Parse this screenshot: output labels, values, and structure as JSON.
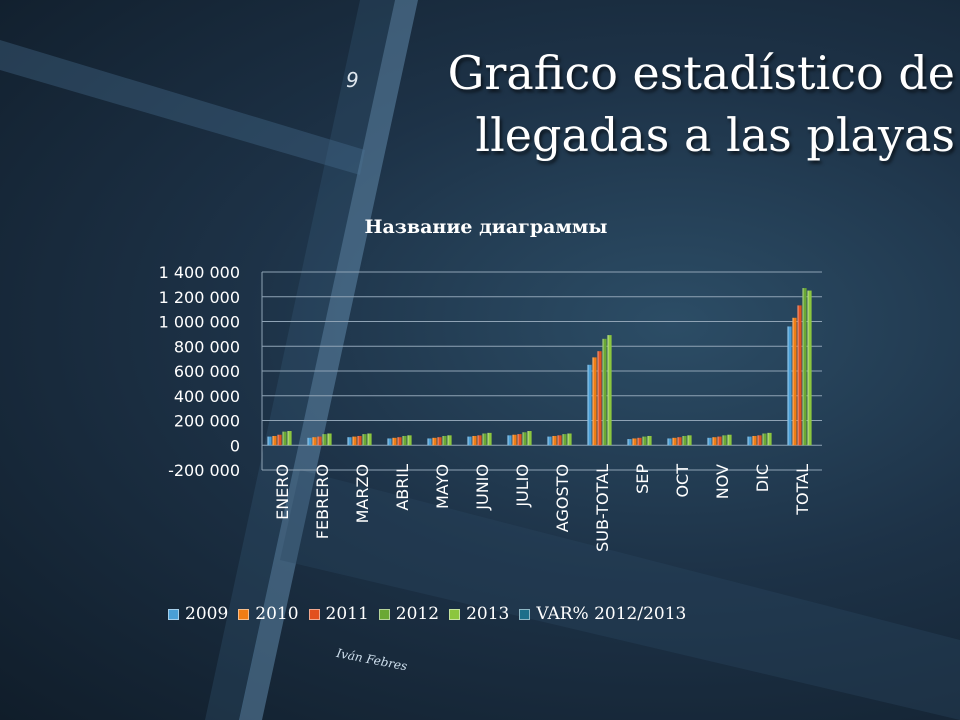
{
  "slide": {
    "number": "9",
    "title_line1": "Grafico estadístico de",
    "title_line2": "llegadas a las playas",
    "author": "Iván Febres"
  },
  "chart_data": {
    "type": "bar",
    "title": "Название диаграммы",
    "categories": [
      "ENERO",
      "FEBRERO",
      "MARZO",
      "ABRIL",
      "MAYO",
      "JUNIO",
      "JULIO",
      "AGOSTO",
      "SUB-TOTAL",
      "SEP",
      "OCT",
      "NOV",
      "DIC",
      "TOTAL"
    ],
    "ylim": [
      -200000,
      1400000
    ],
    "yticks": [
      -200000,
      0,
      200000,
      400000,
      600000,
      800000,
      1000000,
      1200000,
      1400000
    ],
    "ytick_labels": [
      "-200 000",
      "0",
      "200 000",
      "400 000",
      "600 000",
      "800 000",
      "1 000 000",
      "1 200 000",
      "1 400 000"
    ],
    "grid": true,
    "legend_position": "bottom",
    "series": [
      {
        "name": "2009",
        "color": "#4a9fd6",
        "values": [
          70000,
          60000,
          65000,
          55000,
          55000,
          70000,
          80000,
          70000,
          650000,
          50000,
          55000,
          60000,
          70000,
          960000
        ]
      },
      {
        "name": "2010",
        "color": "#f07d14",
        "values": [
          75000,
          65000,
          70000,
          60000,
          60000,
          75000,
          85000,
          75000,
          710000,
          55000,
          60000,
          65000,
          75000,
          1030000
        ]
      },
      {
        "name": "2011",
        "color": "#e2501e",
        "values": [
          85000,
          70000,
          75000,
          65000,
          65000,
          80000,
          90000,
          80000,
          760000,
          60000,
          65000,
          70000,
          80000,
          1130000
        ]
      },
      {
        "name": "2012",
        "color": "#6aa834",
        "values": [
          110000,
          90000,
          90000,
          75000,
          75000,
          95000,
          105000,
          90000,
          860000,
          70000,
          75000,
          80000,
          95000,
          1270000
        ]
      },
      {
        "name": "2013",
        "color": "#8cc63e",
        "values": [
          115000,
          95000,
          95000,
          80000,
          80000,
          100000,
          115000,
          95000,
          890000,
          75000,
          80000,
          85000,
          100000,
          1250000
        ]
      },
      {
        "name": "VAR% 2012/2013",
        "color": "#1d6f8a",
        "values": [
          0,
          0,
          0,
          0,
          0,
          0,
          0,
          0,
          0,
          0,
          0,
          0,
          0,
          0
        ]
      }
    ]
  }
}
